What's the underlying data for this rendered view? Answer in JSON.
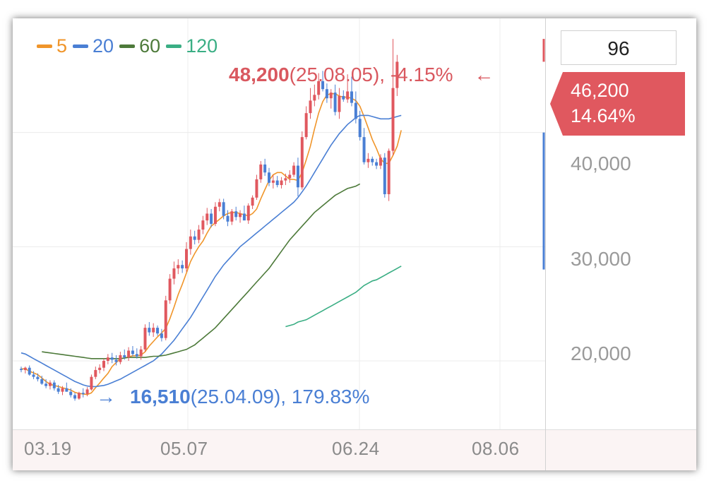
{
  "chart_data": {
    "type": "candlestick",
    "x_ticks": [
      "03.19",
      "05.07",
      "06.24",
      "08.06"
    ],
    "y_ticks": [
      "40,000",
      "30,000",
      "20,000"
    ],
    "ylim": [
      14000,
      50000
    ],
    "legend": [
      {
        "label": "5",
        "color": "#f0952a"
      },
      {
        "label": "20",
        "color": "#4a7fd4"
      },
      {
        "label": "60",
        "color": "#4d7a3a"
      },
      {
        "label": "120",
        "color": "#3aae84"
      }
    ],
    "high_annotation": {
      "price": "48,200",
      "detail": "(25.08.05), -4.15%",
      "arrow": "←"
    },
    "low_annotation": {
      "price": "16,510",
      "detail": "(25.04.09), 179.83%",
      "arrow": "→"
    },
    "current_price": "46,200",
    "current_change": "14.64%",
    "period_input": "96",
    "colors": {
      "up": "#e0585f",
      "down": "#4a7fd4"
    },
    "candles": [
      [
        19300,
        19500,
        19000,
        19200
      ],
      [
        19200,
        19500,
        18900,
        19400
      ],
      [
        19400,
        19600,
        18700,
        18800
      ],
      [
        18800,
        19100,
        18400,
        18600
      ],
      [
        18600,
        18900,
        18200,
        18400
      ],
      [
        18400,
        18700,
        17900,
        18000
      ],
      [
        18000,
        18400,
        17600,
        17800
      ],
      [
        17800,
        18300,
        17500,
        18100
      ],
      [
        18100,
        18300,
        17400,
        17600
      ],
      [
        17600,
        17900,
        17100,
        17300
      ],
      [
        17300,
        17800,
        17000,
        17600
      ],
      [
        17600,
        18100,
        17300,
        17300
      ],
      [
        17300,
        17600,
        16800,
        17000
      ],
      [
        17000,
        17200,
        16510,
        16700
      ],
      [
        16700,
        17300,
        16600,
        17200
      ],
      [
        17200,
        17600,
        16800,
        17100
      ],
      [
        17100,
        17700,
        16900,
        17500
      ],
      [
        17500,
        18800,
        17400,
        18600
      ],
      [
        18600,
        19500,
        18400,
        19200
      ],
      [
        19200,
        19700,
        18900,
        19400
      ],
      [
        19400,
        20200,
        19100,
        20000
      ],
      [
        20000,
        20600,
        19700,
        20300
      ],
      [
        20300,
        20700,
        19800,
        20100
      ],
      [
        20100,
        20500,
        19600,
        19900
      ],
      [
        19900,
        20800,
        19700,
        20500
      ],
      [
        20500,
        21000,
        20100,
        20300
      ],
      [
        20300,
        21200,
        20000,
        20900
      ],
      [
        20900,
        21300,
        20400,
        20600
      ],
      [
        20600,
        21100,
        20200,
        20400
      ],
      [
        20400,
        21300,
        20100,
        21000
      ],
      [
        21000,
        23200,
        20800,
        22900
      ],
      [
        22900,
        23400,
        22200,
        22500
      ],
      [
        22500,
        23300,
        22100,
        22900
      ],
      [
        22900,
        23100,
        22200,
        22400
      ],
      [
        22400,
        22800,
        21700,
        22000
      ],
      [
        22000,
        25700,
        21800,
        25300
      ],
      [
        25300,
        27600,
        25000,
        27200
      ],
      [
        27200,
        28700,
        26700,
        28100
      ],
      [
        28100,
        28900,
        27600,
        28400
      ],
      [
        28400,
        28800,
        27700,
        28100
      ],
      [
        28100,
        30400,
        27800,
        29800
      ],
      [
        29800,
        31500,
        29300,
        30900
      ],
      [
        30900,
        31400,
        30200,
        30600
      ],
      [
        30600,
        31900,
        30300,
        31500
      ],
      [
        31500,
        32700,
        31100,
        32300
      ],
      [
        32300,
        33400,
        31900,
        32900
      ],
      [
        32900,
        33300,
        31700,
        32000
      ],
      [
        32000,
        33900,
        31800,
        33500
      ],
      [
        33500,
        34200,
        33100,
        33900
      ],
      [
        33900,
        34200,
        32400,
        32700
      ],
      [
        32700,
        33200,
        31800,
        32200
      ],
      [
        32200,
        33300,
        31900,
        33100
      ],
      [
        33100,
        33500,
        32300,
        32600
      ],
      [
        32600,
        33200,
        32100,
        32900
      ],
      [
        32900,
        33600,
        32400,
        32300
      ],
      [
        32300,
        33800,
        32000,
        33600
      ],
      [
        33600,
        34500,
        33300,
        34300
      ],
      [
        34300,
        36300,
        34100,
        35900
      ],
      [
        35900,
        37500,
        35600,
        37200
      ],
      [
        37200,
        37700,
        36200,
        36500
      ],
      [
        36500,
        36900,
        35300,
        35600
      ],
      [
        35600,
        36300,
        35100,
        35800
      ],
      [
        35800,
        36200,
        35200,
        35400
      ],
      [
        35400,
        36100,
        35100,
        35800
      ],
      [
        35800,
        36400,
        35400,
        36000
      ],
      [
        36000,
        36700,
        35600,
        36300
      ],
      [
        36300,
        37400,
        36100,
        37100
      ],
      [
        37100,
        37800,
        34400,
        35200
      ],
      [
        35200,
        40100,
        35000,
        39600
      ],
      [
        39600,
        42300,
        39400,
        41700
      ],
      [
        41700,
        43900,
        41200,
        42800
      ],
      [
        42800,
        44200,
        42300,
        43300
      ],
      [
        43300,
        45200,
        42900,
        44500
      ],
      [
        44500,
        45400,
        43600,
        43800
      ],
      [
        43800,
        44300,
        42600,
        43000
      ],
      [
        43000,
        43800,
        42100,
        43500
      ],
      [
        43500,
        44200,
        41500,
        41800
      ],
      [
        41800,
        43900,
        41200,
        43200
      ],
      [
        43200,
        43700,
        42700,
        42900
      ],
      [
        42900,
        45100,
        42600,
        43600
      ],
      [
        43600,
        44900,
        42300,
        42600
      ],
      [
        42600,
        43600,
        40800,
        41200
      ],
      [
        41200,
        41900,
        39300,
        39600
      ],
      [
        39600,
        40400,
        37200,
        37400
      ],
      [
        37400,
        38200,
        36900,
        37700
      ],
      [
        37700,
        37900,
        37100,
        37400
      ],
      [
        37400,
        37700,
        36800,
        37100
      ],
      [
        37100,
        38100,
        36800,
        37800
      ],
      [
        37800,
        38200,
        34300,
        34600
      ],
      [
        34600,
        38600,
        34000,
        38400
      ],
      [
        38400,
        48200,
        38000,
        43900
      ],
      [
        43900,
        46800,
        43200,
        46200
      ]
    ],
    "ma_series": [
      {
        "name": "5",
        "start": 0,
        "values": [
          19300,
          19300,
          19100,
          18950,
          18800,
          18500,
          18200,
          17950,
          17850,
          17750,
          17650,
          17550,
          17450,
          17250,
          17150,
          17100,
          17050,
          17200,
          17650,
          18050,
          18500,
          18900,
          19500,
          19850,
          20200,
          20250,
          20350,
          20450,
          20450,
          20500,
          20800,
          21300,
          21700,
          22100,
          22450,
          22850,
          23700,
          24700,
          25800,
          26700,
          27700,
          28700,
          29400,
          30000,
          30500,
          31200,
          31800,
          32100,
          32400,
          32700,
          32900,
          33000,
          33000,
          32900,
          32800,
          32700,
          32900,
          33300,
          34200,
          35000,
          35800,
          36300,
          36500,
          36500,
          36200,
          35900,
          35900,
          35800,
          36500,
          37600,
          38800,
          40300,
          41700,
          42700,
          43300,
          43400,
          43400,
          43200,
          43100,
          43100,
          43000,
          42800,
          42300,
          41400,
          40400,
          39400,
          38600,
          37700,
          37300,
          37300,
          38000,
          38800,
          40200
        ]
      },
      {
        "name": "20",
        "start": 0,
        "values": [
          20700,
          20600,
          20400,
          20200,
          20000,
          19800,
          19600,
          19400,
          19200,
          19000,
          18800,
          18600,
          18400,
          18200,
          18050,
          17900,
          17800,
          17750,
          17750,
          17800,
          17850,
          17950,
          18100,
          18250,
          18400,
          18600,
          18800,
          19000,
          19200,
          19400,
          19600,
          19800,
          20000,
          20300,
          20600,
          21000,
          21400,
          21800,
          22300,
          22800,
          23300,
          23800,
          24400,
          25000,
          25600,
          26200,
          26800,
          27400,
          27900,
          28400,
          28800,
          29200,
          29600,
          30000,
          30300,
          30600,
          30900,
          31200,
          31500,
          31800,
          32100,
          32400,
          32700,
          33000,
          33300,
          33600,
          33900,
          34300,
          34800,
          35300,
          35900,
          36500,
          37100,
          37700,
          38300,
          38900,
          39400,
          39900,
          40300,
          40700,
          41000,
          41300,
          41500,
          41500,
          41500,
          41400,
          41300,
          41200,
          41200,
          41200,
          41300,
          41400,
          41500
        ]
      },
      {
        "name": "60",
        "start": 5,
        "values": [
          20800,
          20750,
          20700,
          20650,
          20600,
          20550,
          20500,
          20450,
          20400,
          20350,
          20300,
          20250,
          20200,
          20200,
          20200,
          20200,
          20200,
          20200,
          20200,
          20200,
          20250,
          20300,
          20300,
          20300,
          20300,
          20300,
          20350,
          20400,
          20400,
          20450,
          20500,
          20600,
          20700,
          20800,
          20900,
          21000,
          21200,
          21400,
          21700,
          22000,
          22300,
          22600,
          22900,
          23300,
          23700,
          24100,
          24500,
          24900,
          25300,
          25700,
          26100,
          26500,
          26900,
          27300,
          27700,
          28100,
          28600,
          29100,
          29600,
          30100,
          30600,
          31000,
          31400,
          31800,
          32200,
          32600,
          33000,
          33300,
          33600,
          33900,
          34200,
          34500,
          34700,
          34900,
          35100,
          35200,
          35300,
          35500
        ]
      },
      {
        "name": "120",
        "start": 64,
        "values": [
          23000,
          23100,
          23200,
          23400,
          23500,
          23600,
          23800,
          24000,
          24200,
          24400,
          24600,
          24800,
          25000,
          25200,
          25400,
          25600,
          25800,
          26000,
          26300,
          26600,
          26800,
          27000,
          27100,
          27300,
          27500,
          27700,
          27900,
          28100,
          28300
        ]
      }
    ]
  }
}
